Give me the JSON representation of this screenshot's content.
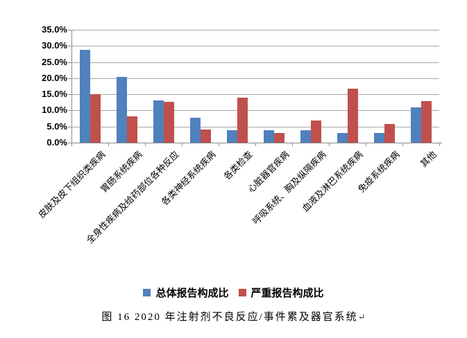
{
  "figure": {
    "caption": {
      "text": "图 16  2020 年注射剂不良反应/事件累及器官系统",
      "return_mark": "↵"
    }
  },
  "chart_data": {
    "type": "bar",
    "title": "2020 年注射剂不良反应/事件累及器官系统",
    "categories": [
      "皮肤及皮下组织类疾病",
      "胃肠系统疾病",
      "全身性疾病及给药部位各种反应",
      "各类神经系统疾病",
      "各类检查",
      "心脏器官疾病",
      "呼吸系统、胸及纵隔疾病",
      "血液及淋巴系统疾病",
      "免疫系统疾病",
      "其他"
    ],
    "series": [
      {
        "name": "总体报告构成比",
        "color": "#4F81BD",
        "values": [
          28.7,
          20.5,
          13.0,
          7.8,
          3.8,
          3.8,
          3.8,
          3.0,
          3.1,
          11.0
        ]
      },
      {
        "name": "严重报告构成比",
        "color": "#C0504D",
        "values": [
          15.0,
          8.1,
          12.7,
          4.1,
          13.9,
          3.1,
          6.8,
          16.8,
          5.7,
          12.9
        ]
      }
    ],
    "xlabel": "",
    "ylabel": "",
    "ylim": [
      0,
      35
    ],
    "yticks": [
      {
        "label": "35.0%",
        "value": 35
      },
      {
        "label": "30.0%",
        "value": 30
      },
      {
        "label": "25.0%",
        "value": 25
      },
      {
        "label": "20.0%",
        "value": 20
      },
      {
        "label": "15.0%",
        "value": 15
      },
      {
        "label": "10.0%",
        "value": 10
      },
      {
        "label": "5.0%",
        "value": 5
      },
      {
        "label": "0.0%",
        "value": 0
      }
    ],
    "grid": true,
    "legend_position": "bottom",
    "gridline_color": "#A6A6A6",
    "axis_color": "#8C8C8C"
  }
}
